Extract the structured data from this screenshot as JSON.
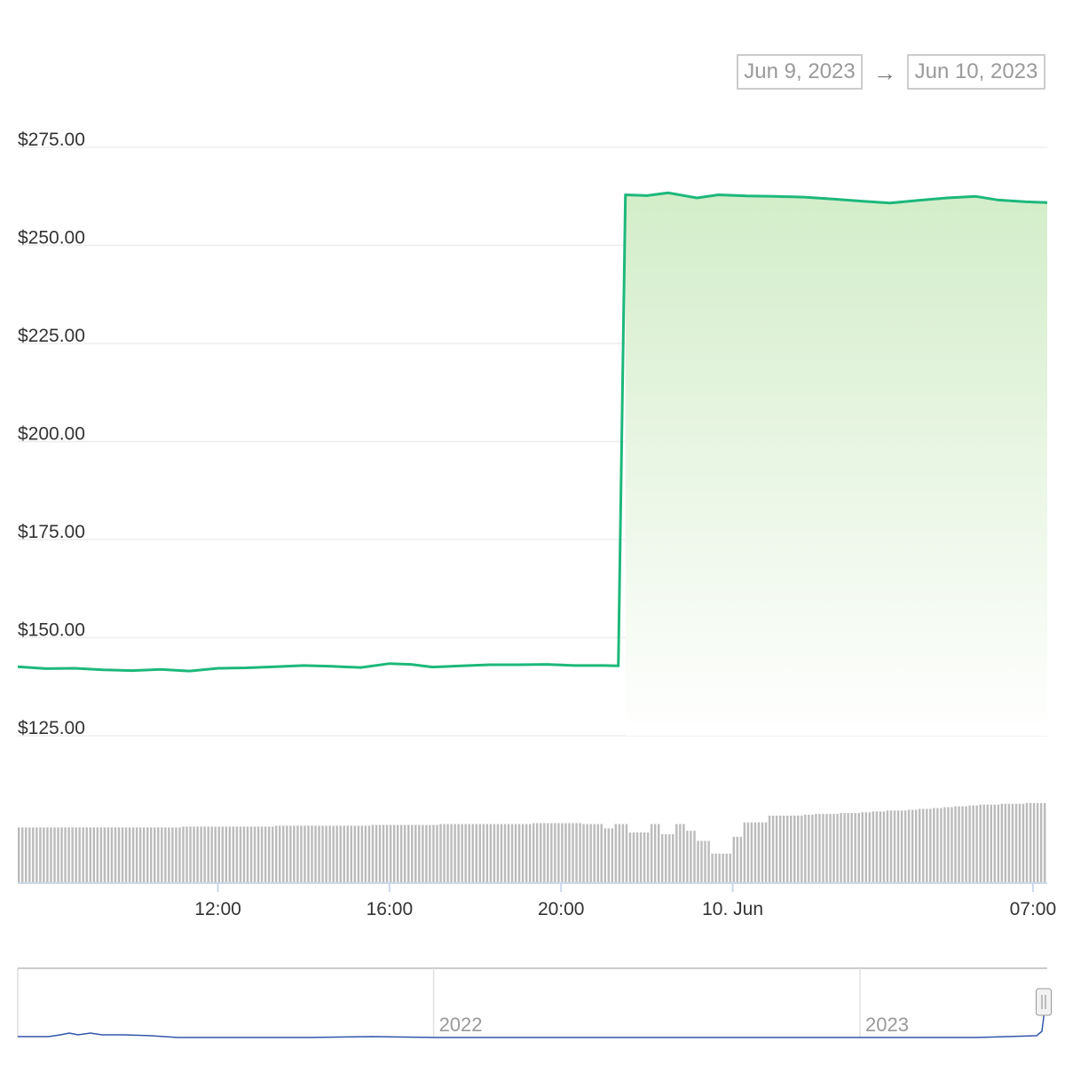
{
  "range_selector": {
    "from": "Jun 9, 2023",
    "arrow": "→",
    "to": "Jun 10, 2023"
  },
  "colors": {
    "line": "#1db87b",
    "area_top": "#d3edc9",
    "volume": "#bbbbbb",
    "navigator_line": "#3355aa",
    "grid": "#eeeeee"
  },
  "chart_data": {
    "type": "area",
    "title": "",
    "xlabel": "",
    "ylabel": "",
    "ylim": [
      125,
      275
    ],
    "y_ticks": [
      "$275.00",
      "$250.00",
      "$225.00",
      "$200.00",
      "$175.00",
      "$150.00",
      "$125.00"
    ],
    "y_tick_values": [
      275,
      250,
      225,
      200,
      175,
      150,
      125
    ],
    "x_range": [
      "2023-06-09 07:20",
      "2023-06-10 07:20"
    ],
    "x_ticks": [
      {
        "label": "12:00",
        "time": "2023-06-09 12:00"
      },
      {
        "label": "16:00",
        "time": "2023-06-09 16:00"
      },
      {
        "label": "20:00",
        "time": "2023-06-09 20:00"
      },
      {
        "label": "10. Jun",
        "time": "2023-06-10 00:00"
      },
      {
        "label": "07:00",
        "time": "2023-06-10 07:00"
      }
    ],
    "series": [
      {
        "points": [
          [
            "2023-06-09 07:20",
            142.6
          ],
          [
            "2023-06-09 08:00",
            142.1
          ],
          [
            "2023-06-09 08:40",
            142.2
          ],
          [
            "2023-06-09 09:20",
            141.8
          ],
          [
            "2023-06-09 10:00",
            141.6
          ],
          [
            "2023-06-09 10:40",
            141.9
          ],
          [
            "2023-06-09 11:20",
            141.5
          ],
          [
            "2023-06-09 12:00",
            142.2
          ],
          [
            "2023-06-09 12:40",
            142.3
          ],
          [
            "2023-06-09 13:20",
            142.6
          ],
          [
            "2023-06-09 14:00",
            142.9
          ],
          [
            "2023-06-09 14:40",
            142.7
          ],
          [
            "2023-06-09 15:20",
            142.4
          ],
          [
            "2023-06-09 16:00",
            143.4
          ],
          [
            "2023-06-09 16:30",
            143.2
          ],
          [
            "2023-06-09 17:00",
            142.5
          ],
          [
            "2023-06-09 17:40",
            142.8
          ],
          [
            "2023-06-09 18:20",
            143.1
          ],
          [
            "2023-06-09 19:00",
            143.1
          ],
          [
            "2023-06-09 19:40",
            143.2
          ],
          [
            "2023-06-09 20:20",
            142.9
          ],
          [
            "2023-06-09 21:00",
            142.9
          ],
          [
            "2023-06-09 21:20",
            142.8
          ],
          [
            "2023-06-09 21:30",
            262.9
          ],
          [
            "2023-06-09 22:00",
            262.7
          ],
          [
            "2023-06-09 22:30",
            263.4
          ],
          [
            "2023-06-09 23:10",
            262.1
          ],
          [
            "2023-06-09 23:40",
            262.9
          ],
          [
            "2023-06-10 00:20",
            262.6
          ],
          [
            "2023-06-10 01:00",
            262.5
          ],
          [
            "2023-06-10 01:40",
            262.3
          ],
          [
            "2023-06-10 02:20",
            261.8
          ],
          [
            "2023-06-10 03:00",
            261.3
          ],
          [
            "2023-06-10 03:40",
            260.8
          ],
          [
            "2023-06-10 04:20",
            261.5
          ],
          [
            "2023-06-10 05:00",
            262.1
          ],
          [
            "2023-06-10 05:40",
            262.5
          ],
          [
            "2023-06-10 06:10",
            261.6
          ],
          [
            "2023-06-10 06:50",
            261.1
          ],
          [
            "2023-06-10 07:20",
            260.9
          ]
        ]
      }
    ],
    "volume_levels": [
      0.66,
      0.66,
      0.66,
      0.66,
      0.66,
      0.66,
      0.66,
      0.66,
      0.66,
      0.66,
      0.66,
      0.66,
      0.66,
      0.66,
      0.67,
      0.67,
      0.67,
      0.67,
      0.67,
      0.67,
      0.67,
      0.67,
      0.68,
      0.68,
      0.68,
      0.68,
      0.68,
      0.68,
      0.68,
      0.68,
      0.69,
      0.69,
      0.69,
      0.69,
      0.69,
      0.69,
      0.7,
      0.7,
      0.7,
      0.7,
      0.7,
      0.7,
      0.7,
      0.7,
      0.71,
      0.71,
      0.71,
      0.71,
      0.7,
      0.7,
      0.65,
      0.7,
      0.6,
      0.6,
      0.7,
      0.58,
      0.7,
      0.62,
      0.5,
      0.35,
      0.35,
      0.55,
      0.72,
      0.72,
      0.8,
      0.8,
      0.8,
      0.81,
      0.82,
      0.82,
      0.83,
      0.83,
      0.84,
      0.85,
      0.86,
      0.86,
      0.87,
      0.88,
      0.89,
      0.9,
      0.91,
      0.92,
      0.93,
      0.93,
      0.94,
      0.94,
      0.95,
      0.95
    ],
    "navigator": {
      "x_ticks": [
        {
          "label": "2022",
          "time": "2022-01-01"
        },
        {
          "label": "2023",
          "time": "2023-01-01"
        }
      ]
    }
  }
}
